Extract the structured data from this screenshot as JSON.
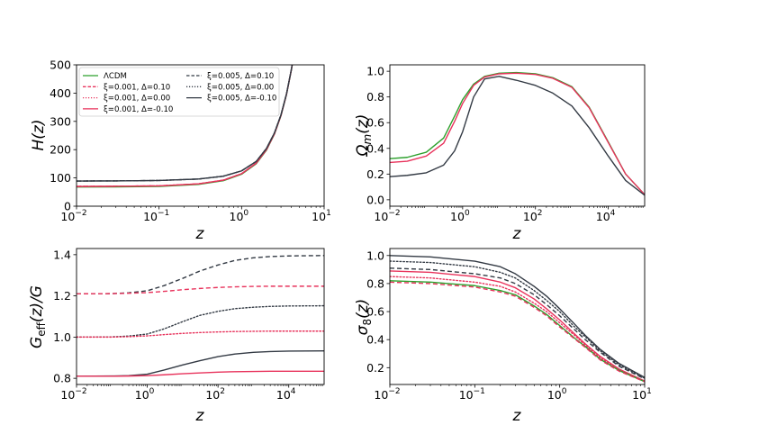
{
  "legend": {
    "entries": [
      {
        "label": "ΛCDM",
        "color": "#2ca02c",
        "dash": "solid"
      },
      {
        "label": "ξ=0.001, Δ=0.10",
        "color": "#e8335c",
        "dash": "dashed"
      },
      {
        "label": "ξ=0.001, Δ=0.00",
        "color": "#e8335c",
        "dash": "dotted"
      },
      {
        "label": "ξ=0.001, Δ=-0.10",
        "color": "#e8335c",
        "dash": "solid"
      },
      {
        "label": "ξ=0.005, Δ=0.10",
        "color": "#333a44",
        "dash": "dashed"
      },
      {
        "label": "ξ=0.005, Δ=0.00",
        "color": "#333a44",
        "dash": "dotted"
      },
      {
        "label": "ξ=0.005, Δ=-0.10",
        "color": "#333a44",
        "dash": "solid"
      }
    ],
    "placement": "top-left of H(z) panel"
  },
  "chart_data": [
    {
      "type": "line",
      "id": "H",
      "xlabel": "z",
      "ylabel": "H(z)",
      "x_scale": "log",
      "xlim": [
        0.01,
        10
      ],
      "ylim": [
        0,
        500
      ],
      "x_ticks": [
        {
          "v": 0.01,
          "t": "10",
          "e": "−2"
        },
        {
          "v": 0.1,
          "t": "10",
          "e": "−1"
        },
        {
          "v": 1,
          "t": "10",
          "e": "0"
        },
        {
          "v": 10,
          "t": "10",
          "e": "1"
        }
      ],
      "y_ticks": [
        {
          "v": 0,
          "t": "0"
        },
        {
          "v": 100,
          "t": "100"
        },
        {
          "v": 200,
          "t": "200"
        },
        {
          "v": 300,
          "t": "300"
        },
        {
          "v": 400,
          "t": "400"
        },
        {
          "v": 500,
          "t": "500"
        }
      ],
      "series": [
        {
          "name": "ΛCDM",
          "color": "#2ca02c",
          "dash": "solid",
          "x": [
            0.01,
            0.03,
            0.1,
            0.3,
            0.6,
            1,
            1.5,
            2,
            2.5,
            3,
            3.5,
            4,
            4.5
          ],
          "y": [
            68,
            68.5,
            70,
            77,
            90,
            113,
            150,
            198,
            255,
            320,
            395,
            480,
            570
          ]
        },
        {
          "name": "ξ=0.001, Δ=0.10",
          "color": "#e8335c",
          "dash": "dashed",
          "x": [
            0.01,
            0.03,
            0.1,
            0.3,
            0.6,
            1,
            1.5,
            2,
            2.5,
            3,
            3.5,
            4,
            4.5
          ],
          "y": [
            70,
            70.5,
            72,
            79,
            92,
            115,
            152,
            200,
            256,
            321,
            396,
            481,
            571
          ]
        },
        {
          "name": "ξ=0.001, Δ=0.00",
          "color": "#e8335c",
          "dash": "dotted",
          "x": [
            0.01,
            0.03,
            0.1,
            0.3,
            0.6,
            1,
            1.5,
            2,
            2.5,
            3,
            3.5,
            4,
            4.5
          ],
          "y": [
            70,
            70.5,
            72,
            79,
            92,
            115,
            152,
            200,
            256,
            321,
            396,
            481,
            571
          ]
        },
        {
          "name": "ξ=0.001, Δ=-0.10",
          "color": "#e8335c",
          "dash": "solid",
          "x": [
            0.01,
            0.03,
            0.1,
            0.3,
            0.6,
            1,
            1.5,
            2,
            2.5,
            3,
            3.5,
            4,
            4.5
          ],
          "y": [
            70,
            70.5,
            72,
            79,
            92,
            115,
            152,
            200,
            256,
            321,
            396,
            481,
            571
          ]
        },
        {
          "name": "ξ=0.005, Δ=0.10",
          "color": "#333a44",
          "dash": "dashed",
          "x": [
            0.01,
            0.03,
            0.1,
            0.3,
            0.6,
            1,
            1.5,
            2,
            2.5,
            3,
            3.5,
            4,
            4.5
          ],
          "y": [
            89,
            89.5,
            91,
            96,
            106,
            125,
            158,
            204,
            259,
            323,
            397,
            482,
            572
          ]
        },
        {
          "name": "ξ=0.005, Δ=0.00",
          "color": "#333a44",
          "dash": "dotted",
          "x": [
            0.01,
            0.03,
            0.1,
            0.3,
            0.6,
            1,
            1.5,
            2,
            2.5,
            3,
            3.5,
            4,
            4.5
          ],
          "y": [
            89,
            89.5,
            91,
            96,
            106,
            125,
            158,
            204,
            259,
            323,
            397,
            482,
            572
          ]
        },
        {
          "name": "ξ=0.005, Δ=-0.10",
          "color": "#333a44",
          "dash": "solid",
          "x": [
            0.01,
            0.03,
            0.1,
            0.3,
            0.6,
            1,
            1.5,
            2,
            2.5,
            3,
            3.5,
            4,
            4.5
          ],
          "y": [
            89,
            89.5,
            91,
            96,
            106,
            125,
            158,
            204,
            259,
            323,
            397,
            482,
            572
          ]
        }
      ]
    },
    {
      "type": "line",
      "id": "Omega",
      "xlabel": "z",
      "ylabel": "Ωm(z)",
      "x_scale": "log",
      "xlim": [
        0.01,
        100000
      ],
      "ylim": [
        -0.05,
        1.05
      ],
      "x_ticks": [
        {
          "v": 0.01,
          "t": "10",
          "e": "−2"
        },
        {
          "v": 1,
          "t": "10",
          "e": "0"
        },
        {
          "v": 100,
          "t": "10",
          "e": "2"
        },
        {
          "v": 10000,
          "t": "10",
          "e": "4"
        }
      ],
      "y_ticks": [
        {
          "v": 0,
          "t": "0.0"
        },
        {
          "v": 0.2,
          "t": "0.2"
        },
        {
          "v": 0.4,
          "t": "0.4"
        },
        {
          "v": 0.6,
          "t": "0.6"
        },
        {
          "v": 0.8,
          "t": "0.8"
        },
        {
          "v": 1.0,
          "t": "1.0"
        }
      ],
      "series": [
        {
          "name": "ΛCDM",
          "color": "#2ca02c",
          "dash": "solid",
          "x": [
            0.01,
            0.03,
            0.1,
            0.3,
            0.6,
            1,
            2,
            4,
            10,
            30,
            100,
            300,
            1000,
            3000,
            10000,
            30000,
            100000
          ],
          "y": [
            0.32,
            0.33,
            0.37,
            0.48,
            0.65,
            0.78,
            0.9,
            0.96,
            0.985,
            0.99,
            0.98,
            0.95,
            0.88,
            0.72,
            0.45,
            0.2,
            0.04
          ]
        },
        {
          "name": "ξ=0.001, Δ=-0.10",
          "color": "#e8335c",
          "dash": "solid",
          "x": [
            0.01,
            0.03,
            0.1,
            0.3,
            0.6,
            1,
            2,
            4,
            10,
            30,
            100,
            300,
            1000,
            3000,
            10000,
            30000,
            100000
          ],
          "y": [
            0.29,
            0.3,
            0.34,
            0.44,
            0.61,
            0.75,
            0.89,
            0.955,
            0.98,
            0.985,
            0.975,
            0.945,
            0.875,
            0.715,
            0.445,
            0.2,
            0.04
          ]
        },
        {
          "name": "ξ=0.005, Δ=-0.10",
          "color": "#333a44",
          "dash": "solid",
          "x": [
            0.01,
            0.03,
            0.1,
            0.3,
            0.6,
            1,
            2,
            4,
            10,
            30,
            100,
            300,
            1000,
            3000,
            10000,
            30000,
            100000
          ],
          "y": [
            0.18,
            0.19,
            0.21,
            0.27,
            0.38,
            0.53,
            0.8,
            0.94,
            0.96,
            0.93,
            0.89,
            0.83,
            0.73,
            0.56,
            0.34,
            0.15,
            0.035
          ]
        }
      ]
    },
    {
      "type": "line",
      "id": "Geff",
      "xlabel": "z",
      "ylabel": "Geff(z)/G",
      "x_scale": "log",
      "xlim": [
        0.01,
        100000
      ],
      "ylim": [
        0.77,
        1.43
      ],
      "x_ticks": [
        {
          "v": 0.01,
          "t": "10",
          "e": "−2"
        },
        {
          "v": 1,
          "t": "10",
          "e": "0"
        },
        {
          "v": 100,
          "t": "10",
          "e": "2"
        },
        {
          "v": 10000,
          "t": "10",
          "e": "4"
        }
      ],
      "y_ticks": [
        {
          "v": 0.8,
          "t": "0.8"
        },
        {
          "v": 1.0,
          "t": "1.0"
        },
        {
          "v": 1.2,
          "t": "1.2"
        },
        {
          "v": 1.4,
          "t": "1.4"
        }
      ],
      "series": [
        {
          "name": "ξ=0.005, Δ=0.10",
          "color": "#333a44",
          "dash": "dashed",
          "x": [
            0.01,
            0.1,
            0.3,
            1,
            3,
            10,
            30,
            100,
            300,
            1000,
            3000,
            10000,
            100000
          ],
          "y": [
            1.21,
            1.211,
            1.215,
            1.225,
            1.25,
            1.285,
            1.32,
            1.35,
            1.372,
            1.385,
            1.391,
            1.394,
            1.396
          ]
        },
        {
          "name": "ξ=0.001, Δ=0.10",
          "color": "#e8335c",
          "dash": "dashed",
          "x": [
            0.01,
            0.1,
            0.3,
            1,
            3,
            10,
            30,
            100,
            300,
            1000,
            3000,
            10000,
            100000
          ],
          "y": [
            1.21,
            1.211,
            1.213,
            1.216,
            1.222,
            1.23,
            1.236,
            1.241,
            1.244,
            1.246,
            1.247,
            1.247,
            1.247
          ]
        },
        {
          "name": "ξ=0.005, Δ=0.00",
          "color": "#333a44",
          "dash": "dotted",
          "x": [
            0.01,
            0.1,
            0.3,
            1,
            3,
            10,
            30,
            100,
            300,
            1000,
            3000,
            10000,
            100000
          ],
          "y": [
            1.0,
            1.001,
            1.005,
            1.015,
            1.04,
            1.075,
            1.105,
            1.125,
            1.138,
            1.145,
            1.149,
            1.151,
            1.152
          ]
        },
        {
          "name": "ξ=0.001, Δ=0.00",
          "color": "#e8335c",
          "dash": "dotted",
          "x": [
            0.01,
            0.1,
            0.3,
            1,
            3,
            10,
            30,
            100,
            300,
            1000,
            3000,
            10000,
            100000
          ],
          "y": [
            1.0,
            1.0,
            1.002,
            1.006,
            1.012,
            1.018,
            1.022,
            1.025,
            1.027,
            1.028,
            1.029,
            1.029,
            1.029
          ]
        },
        {
          "name": "ξ=0.005, Δ=-0.10",
          "color": "#333a44",
          "dash": "solid",
          "x": [
            0.01,
            0.1,
            0.3,
            1,
            3,
            10,
            30,
            100,
            300,
            1000,
            3000,
            10000,
            100000
          ],
          "y": [
            0.81,
            0.811,
            0.813,
            0.82,
            0.84,
            0.865,
            0.885,
            0.905,
            0.918,
            0.926,
            0.93,
            0.932,
            0.933
          ]
        },
        {
          "name": "ξ=0.001, Δ=-0.10",
          "color": "#e8335c",
          "dash": "solid",
          "x": [
            0.01,
            0.1,
            0.3,
            1,
            3,
            10,
            30,
            100,
            300,
            1000,
            3000,
            10000,
            100000
          ],
          "y": [
            0.81,
            0.81,
            0.811,
            0.813,
            0.817,
            0.822,
            0.826,
            0.83,
            0.832,
            0.833,
            0.834,
            0.834,
            0.834
          ]
        }
      ]
    },
    {
      "type": "line",
      "id": "sigma8",
      "xlabel": "z",
      "ylabel": "σ8(z)",
      "x_scale": "log",
      "xlim": [
        0.01,
        10
      ],
      "ylim": [
        0.08,
        1.05
      ],
      "x_ticks": [
        {
          "v": 0.01,
          "t": "10",
          "e": "−2"
        },
        {
          "v": 0.1,
          "t": "10",
          "e": "−1"
        },
        {
          "v": 1,
          "t": "10",
          "e": "0"
        },
        {
          "v": 10,
          "t": "10",
          "e": "1"
        }
      ],
      "y_ticks": [
        {
          "v": 0.2,
          "t": "0.2"
        },
        {
          "v": 0.4,
          "t": "0.4"
        },
        {
          "v": 0.6,
          "t": "0.6"
        },
        {
          "v": 0.8,
          "t": "0.8"
        },
        {
          "v": 1.0,
          "t": "1.0"
        }
      ],
      "series": [
        {
          "name": "ξ=0.005, Δ=-0.10",
          "color": "#333a44",
          "dash": "solid",
          "x": [
            0.01,
            0.03,
            0.1,
            0.2,
            0.3,
            0.5,
            0.7,
            1,
            1.5,
            2,
            3,
            5,
            10
          ],
          "y": [
            1.0,
            0.99,
            0.96,
            0.92,
            0.87,
            0.78,
            0.71,
            0.62,
            0.51,
            0.43,
            0.33,
            0.23,
            0.13
          ]
        },
        {
          "name": "ξ=0.005, Δ=0.00",
          "color": "#333a44",
          "dash": "dotted",
          "x": [
            0.01,
            0.03,
            0.1,
            0.2,
            0.3,
            0.5,
            0.7,
            1,
            1.5,
            2,
            3,
            5,
            10
          ],
          "y": [
            0.96,
            0.95,
            0.92,
            0.88,
            0.84,
            0.75,
            0.68,
            0.6,
            0.49,
            0.42,
            0.32,
            0.22,
            0.125
          ]
        },
        {
          "name": "ξ=0.005, Δ=0.10",
          "color": "#333a44",
          "dash": "dashed",
          "x": [
            0.01,
            0.03,
            0.1,
            0.2,
            0.3,
            0.5,
            0.7,
            1,
            1.5,
            2,
            3,
            5,
            10
          ],
          "y": [
            0.91,
            0.9,
            0.87,
            0.84,
            0.8,
            0.72,
            0.65,
            0.57,
            0.47,
            0.4,
            0.31,
            0.21,
            0.12
          ]
        },
        {
          "name": "ξ=0.001, Δ=-0.10",
          "color": "#e8335c",
          "dash": "solid",
          "x": [
            0.01,
            0.03,
            0.1,
            0.2,
            0.3,
            0.5,
            0.7,
            1,
            1.5,
            2,
            3,
            5,
            10
          ],
          "y": [
            0.89,
            0.88,
            0.85,
            0.81,
            0.77,
            0.69,
            0.62,
            0.54,
            0.44,
            0.37,
            0.28,
            0.19,
            0.105
          ]
        },
        {
          "name": "ξ=0.001, Δ=0.00",
          "color": "#e8335c",
          "dash": "dotted",
          "x": [
            0.01,
            0.03,
            0.1,
            0.2,
            0.3,
            0.5,
            0.7,
            1,
            1.5,
            2,
            3,
            5,
            10
          ],
          "y": [
            0.85,
            0.84,
            0.81,
            0.78,
            0.74,
            0.66,
            0.6,
            0.52,
            0.43,
            0.36,
            0.27,
            0.185,
            0.1
          ]
        },
        {
          "name": "ΛCDM",
          "color": "#2ca02c",
          "dash": "solid",
          "x": [
            0.01,
            0.03,
            0.1,
            0.2,
            0.3,
            0.5,
            0.7,
            1,
            1.5,
            2,
            3,
            5,
            10
          ],
          "y": [
            0.82,
            0.81,
            0.785,
            0.75,
            0.72,
            0.64,
            0.58,
            0.5,
            0.41,
            0.35,
            0.26,
            0.18,
            0.1
          ]
        },
        {
          "name": "ξ=0.001, Δ=0.10",
          "color": "#e8335c",
          "dash": "dashed",
          "x": [
            0.01,
            0.03,
            0.1,
            0.2,
            0.3,
            0.5,
            0.7,
            1,
            1.5,
            2,
            3,
            5,
            10
          ],
          "y": [
            0.81,
            0.8,
            0.775,
            0.74,
            0.71,
            0.63,
            0.57,
            0.49,
            0.405,
            0.345,
            0.255,
            0.175,
            0.1
          ]
        }
      ]
    }
  ]
}
